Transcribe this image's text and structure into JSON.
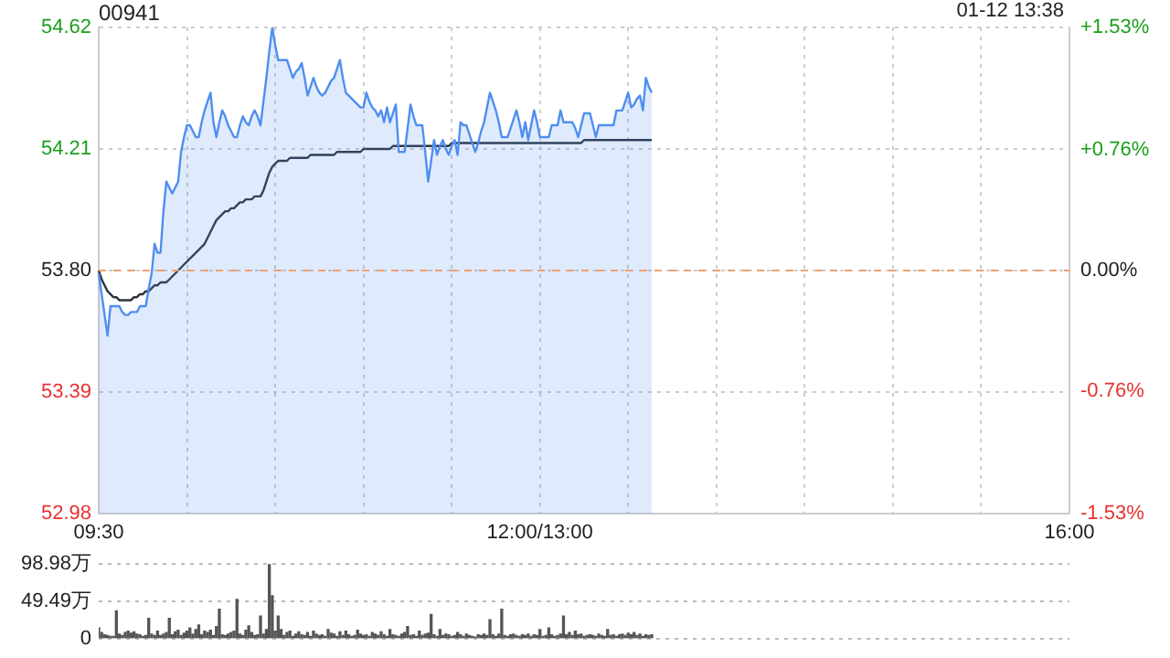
{
  "chart_data": [
    {
      "type": "line",
      "title": "00941",
      "subtitle": "01-12 13:38",
      "categories": [
        "09:30",
        null,
        null,
        null,
        null,
        null,
        null,
        null,
        null,
        null,
        null,
        null,
        null,
        null,
        null,
        null,
        null,
        null,
        null,
        null,
        null,
        null,
        null,
        null,
        null,
        null,
        null,
        null,
        null,
        null,
        null,
        null,
        null,
        null,
        null,
        null,
        null,
        null,
        null,
        null,
        null,
        null,
        null,
        null,
        null,
        null,
        null,
        null,
        null,
        null,
        null,
        null,
        null,
        null,
        null,
        null,
        null,
        null,
        null,
        null,
        null,
        null,
        null,
        null,
        null,
        null,
        null,
        null,
        null,
        null,
        null,
        null,
        null,
        null,
        null,
        null,
        null,
        null,
        null,
        null,
        null,
        null,
        null,
        null,
        null,
        null,
        null,
        null,
        null,
        null,
        null,
        null,
        null,
        null,
        null,
        null,
        null,
        null,
        null,
        null,
        null,
        null,
        null,
        null,
        null,
        null,
        null,
        null,
        null,
        null,
        null,
        null,
        null,
        null,
        null,
        null,
        null,
        null,
        null,
        null,
        null,
        null,
        null,
        null,
        null,
        null,
        null,
        null,
        null,
        null,
        null,
        null,
        null,
        null,
        null,
        null,
        null,
        null,
        null,
        null,
        null,
        null,
        null,
        null,
        null,
        null,
        null,
        null,
        null,
        null,
        "12:00/13:00",
        null,
        null,
        null,
        null,
        null,
        null,
        null,
        null,
        null,
        null,
        null,
        null,
        null,
        null,
        null,
        null,
        null,
        null,
        null,
        null,
        null,
        null,
        null,
        null,
        null,
        null,
        null,
        null,
        null,
        null,
        null,
        null,
        null,
        null,
        null,
        null,
        null,
        null,
        null,
        null,
        null,
        null,
        null,
        null,
        null,
        null,
        null,
        null,
        null,
        null,
        null,
        null,
        null,
        null,
        null,
        null,
        null,
        null,
        null,
        null,
        null,
        null,
        null,
        null,
        null,
        null,
        null,
        null,
        null,
        null,
        null,
        null,
        null,
        null,
        null,
        null,
        null,
        null,
        null,
        null,
        null,
        null,
        null,
        null,
        null,
        null,
        null,
        null,
        null,
        null,
        null,
        null,
        null,
        null,
        null,
        null,
        null,
        null,
        null,
        null,
        null,
        null,
        null,
        null,
        null,
        null,
        null,
        null,
        null,
        null,
        null,
        null,
        null,
        null,
        null,
        null,
        null,
        null,
        null,
        null,
        null,
        null,
        null,
        null,
        null,
        null,
        null,
        null,
        null,
        null,
        null,
        null,
        null,
        null,
        null,
        null,
        null,
        null,
        null,
        null,
        null,
        null,
        null,
        null,
        null,
        null,
        null,
        null,
        null,
        null,
        null,
        null,
        null,
        null,
        null,
        null,
        null,
        null,
        null,
        null,
        null,
        null,
        null,
        null,
        null,
        null,
        null,
        null,
        null,
        null,
        null,
        null,
        null,
        null,
        null,
        null,
        null,
        null,
        null,
        "16:00"
      ],
      "ylim": [
        52.98,
        54.62
      ],
      "yticks": [
        52.98,
        53.39,
        {
          "value": 53.8,
          "label": "53.80"
        },
        54.21,
        54.62
      ],
      "y2lim": [
        -1.53,
        1.53
      ],
      "y2ticks": [
        {
          "value": -1.53,
          "label": "-1.53%"
        },
        {
          "value": -0.76,
          "label": "-0.76%"
        },
        {
          "value": 0,
          "label": "0.00%"
        },
        {
          "value": 0.76,
          "label": "+0.76%"
        },
        {
          "value": 1.53,
          "label": "+1.53%"
        }
      ],
      "ref_lines": [
        {
          "axis": "y",
          "value": 53.8,
          "color": "#f0a070",
          "line_style": "dashed"
        }
      ],
      "grid": true,
      "legend": false,
      "marker": "none",
      "series": [
        {
          "type": "area",
          "color": "#4f8ef0",
          "values": [
            53.79,
            53.72,
            53.65,
            53.58,
            53.68,
            53.68,
            53.68,
            53.68,
            53.66,
            53.65,
            53.65,
            53.66,
            53.66,
            53.66,
            53.68,
            53.68,
            53.68,
            53.74,
            53.79,
            53.89,
            53.86,
            53.86,
            54.0,
            54.1,
            54.08,
            54.06,
            54.08,
            54.1,
            54.2,
            54.25,
            54.29,
            54.29,
            54.27,
            54.25,
            54.25,
            54.3,
            54.34,
            54.37,
            54.4,
            54.3,
            54.25,
            54.3,
            54.34,
            54.32,
            54.29,
            54.27,
            54.25,
            54.25,
            54.29,
            54.32,
            54.3,
            54.29,
            54.32,
            54.34,
            54.32,
            54.29,
            54.37,
            54.45,
            54.54,
            54.62,
            54.56,
            54.51,
            54.51,
            54.51,
            54.51,
            54.48,
            54.45,
            54.47,
            54.48,
            54.5,
            54.45,
            54.39,
            54.42,
            54.45,
            54.42,
            54.4,
            54.39,
            54.4,
            54.42,
            54.44,
            54.45,
            54.48,
            54.51,
            54.45,
            54.4,
            54.39,
            54.38,
            54.37,
            54.36,
            54.35,
            54.35,
            54.4,
            54.37,
            54.35,
            54.34,
            54.32,
            54.34,
            54.3,
            54.35,
            54.3,
            54.33,
            54.36,
            54.2,
            54.2,
            54.2,
            54.28,
            54.36,
            54.32,
            54.29,
            54.29,
            54.29,
            54.2,
            54.1,
            54.17,
            54.24,
            54.19,
            54.22,
            54.24,
            54.21,
            54.19,
            54.22,
            54.24,
            54.19,
            54.3,
            54.29,
            54.29,
            54.26,
            54.23,
            54.2,
            54.23,
            54.27,
            54.3,
            54.35,
            54.4,
            54.37,
            54.34,
            54.3,
            54.25,
            54.25,
            54.25,
            54.28,
            54.31,
            54.34,
            54.3,
            54.25,
            54.3,
            54.24,
            54.29,
            54.34,
            54.3,
            54.25,
            54.25,
            54.25,
            54.25,
            54.29,
            54.29,
            54.29,
            54.34,
            54.3,
            54.3,
            54.3,
            54.3,
            54.28,
            54.25,
            54.29,
            54.33,
            54.33,
            54.33,
            54.29,
            54.25,
            54.29,
            54.29,
            54.29,
            54.29,
            54.29,
            54.29,
            54.34,
            54.34,
            54.34,
            54.37,
            54.4,
            54.35,
            54.36,
            54.38,
            54.39,
            54.34,
            54.45,
            54.42,
            54.4,
            null,
            null,
            null,
            null,
            null,
            null,
            null,
            null,
            null,
            null,
            null,
            null,
            null,
            null,
            null,
            null,
            null,
            null,
            null,
            null,
            null,
            null,
            null,
            null,
            null,
            null,
            null,
            null,
            null,
            null,
            null,
            null,
            null,
            null,
            null,
            null,
            null,
            null,
            null,
            null,
            null,
            null,
            null,
            null,
            null,
            null,
            null,
            null,
            null,
            null,
            null,
            null,
            null,
            null,
            null,
            null,
            null,
            null,
            null,
            null,
            null,
            null,
            null,
            null,
            null,
            null,
            null,
            null,
            null,
            null,
            null,
            null,
            null,
            null,
            null,
            null,
            null,
            null,
            null,
            null,
            null,
            null,
            null,
            null,
            null,
            null,
            null,
            null,
            null,
            null,
            null,
            null,
            null,
            null,
            null,
            null,
            null,
            null,
            null,
            null,
            null,
            null,
            null,
            null,
            null,
            null,
            null,
            null,
            null,
            null,
            null,
            null,
            null,
            null,
            null,
            null,
            null,
            null,
            null,
            null,
            null,
            null,
            null,
            null,
            null,
            null,
            null,
            null,
            null,
            null,
            null,
            null,
            null,
            null,
            null,
            null,
            null,
            null,
            null,
            null,
            null,
            null
          ]
        },
        {
          "type": "line",
          "color": "#2c3340",
          "values": [
            53.8,
            53.77,
            53.75,
            53.73,
            53.72,
            53.71,
            53.71,
            53.7,
            53.7,
            53.7,
            53.7,
            53.7,
            53.71,
            53.71,
            53.72,
            53.72,
            53.73,
            53.73,
            53.74,
            53.75,
            53.75,
            53.76,
            53.76,
            53.76,
            53.77,
            53.78,
            53.79,
            53.8,
            53.81,
            53.82,
            53.83,
            53.84,
            53.85,
            53.86,
            53.87,
            53.88,
            53.89,
            53.91,
            53.93,
            53.95,
            53.97,
            53.98,
            53.99,
            54.0,
            54.0,
            54.01,
            54.01,
            54.02,
            54.03,
            54.03,
            54.04,
            54.04,
            54.04,
            54.05,
            54.05,
            54.05,
            54.07,
            54.1,
            54.13,
            54.15,
            54.16,
            54.17,
            54.17,
            54.17,
            54.17,
            54.18,
            54.18,
            54.18,
            54.18,
            54.18,
            54.18,
            54.18,
            54.19,
            54.19,
            54.19,
            54.19,
            54.19,
            54.19,
            54.19,
            54.19,
            54.19,
            54.2,
            54.2,
            54.2,
            54.2,
            54.2,
            54.2,
            54.2,
            54.2,
            54.2,
            54.21,
            54.21,
            54.21,
            54.21,
            54.21,
            54.21,
            54.21,
            54.21,
            54.21,
            54.21,
            54.22,
            54.22,
            54.22,
            54.22,
            54.22,
            54.22,
            54.22,
            54.22,
            54.22,
            54.22,
            54.22,
            54.22,
            54.22,
            54.22,
            54.22,
            54.22,
            54.22,
            54.22,
            54.22,
            54.22,
            54.23,
            54.23,
            54.23,
            54.23,
            54.23,
            54.23,
            54.23,
            54.23,
            54.23,
            54.23,
            54.23,
            54.23,
            54.23,
            54.23,
            54.23,
            54.23,
            54.23,
            54.23,
            54.23,
            54.23,
            54.23,
            54.23,
            54.23,
            54.23,
            54.23,
            54.23,
            54.23,
            54.23,
            54.23,
            54.23,
            54.23,
            54.23,
            54.23,
            54.23,
            54.23,
            54.23,
            54.23,
            54.23,
            54.23,
            54.23,
            54.23,
            54.23,
            54.23,
            54.23,
            54.23,
            54.24,
            54.24,
            54.24,
            54.24,
            54.24,
            54.24,
            54.24,
            54.24,
            54.24,
            54.24,
            54.24,
            54.24,
            54.24,
            54.24,
            54.24,
            54.24,
            54.24,
            54.24,
            54.24,
            54.24,
            54.24,
            54.24,
            54.24,
            54.24,
            null,
            null,
            null,
            null,
            null,
            null,
            null,
            null,
            null,
            null,
            null,
            null,
            null,
            null,
            null,
            null,
            null,
            null,
            null,
            null,
            null,
            null,
            null,
            null,
            null,
            null,
            null,
            null,
            null,
            null,
            null,
            null,
            null,
            null,
            null,
            null,
            null,
            null,
            null,
            null,
            null,
            null,
            null,
            null,
            null,
            null,
            null,
            null,
            null,
            null,
            null,
            null,
            null,
            null,
            null,
            null,
            null,
            null,
            null,
            null,
            null,
            null,
            null,
            null,
            null,
            null,
            null,
            null,
            null,
            null,
            null,
            null,
            null,
            null,
            null,
            null,
            null,
            null,
            null,
            null,
            null,
            null,
            null,
            null,
            null,
            null,
            null,
            null,
            null,
            null,
            null,
            null,
            null,
            null,
            null,
            null,
            null,
            null,
            null,
            null,
            null,
            null,
            null,
            null,
            null,
            null,
            null,
            null,
            null,
            null,
            null,
            null,
            null,
            null,
            null,
            null,
            null,
            null,
            null,
            null,
            null,
            null,
            null,
            null,
            null,
            null,
            null,
            null,
            null,
            null,
            null,
            null,
            null,
            null,
            null,
            null,
            null,
            null,
            null,
            null,
            null,
            null
          ]
        }
      ]
    },
    {
      "type": "bar",
      "color": "#555555",
      "tick_labels": "y",
      "grid": "y",
      "legend": false,
      "categories": [
        null,
        null,
        null,
        null,
        null,
        null,
        null,
        null,
        null,
        null,
        null,
        null,
        null,
        null,
        null,
        null,
        null,
        null,
        null,
        null,
        null,
        null,
        null,
        null,
        null,
        null,
        null,
        null,
        null,
        null,
        null,
        null,
        null,
        null,
        null,
        null,
        null,
        null,
        null,
        null,
        null,
        null,
        null,
        null,
        null,
        null,
        null,
        null,
        null,
        null,
        null,
        null,
        null,
        null,
        null,
        null,
        null,
        null,
        null,
        null,
        null,
        null,
        null,
        null,
        null,
        null,
        null,
        null,
        null,
        null,
        null,
        null,
        null,
        null,
        null,
        null,
        null,
        null,
        null,
        null,
        null,
        null,
        null,
        null,
        null,
        null,
        null,
        null,
        null,
        null,
        null,
        null,
        null,
        null,
        null,
        null,
        null,
        null,
        null,
        null,
        null,
        null,
        null,
        null,
        null,
        null,
        null,
        null,
        null,
        null,
        null,
        null,
        null,
        null,
        null,
        null,
        null,
        null,
        null,
        null,
        null,
        null,
        null,
        null,
        null,
        null,
        null,
        null,
        null,
        null,
        null,
        null,
        null,
        null,
        null,
        null,
        null,
        null,
        null,
        null,
        null,
        null,
        null,
        null,
        null,
        null,
        null,
        null,
        null,
        null,
        null,
        null,
        null,
        null,
        null,
        null,
        null,
        null,
        null,
        null,
        null,
        null,
        null,
        null,
        null,
        null,
        null,
        null,
        null,
        null,
        null,
        null,
        null,
        null,
        null,
        null,
        null,
        null,
        null,
        null,
        null,
        null,
        null,
        null,
        null,
        null,
        null,
        null,
        null,
        null,
        null,
        null,
        null,
        null,
        null,
        null,
        null,
        null,
        null,
        null,
        null,
        null,
        null,
        null,
        null,
        null,
        null,
        null,
        null,
        null,
        null,
        null,
        null,
        null,
        null,
        null,
        null,
        null,
        null,
        null,
        null,
        null,
        null,
        null,
        null,
        null,
        null,
        null,
        null,
        null,
        null,
        null,
        null,
        null,
        null,
        null,
        null,
        null,
        null,
        null,
        null,
        null,
        null,
        null,
        null,
        null,
        null,
        null,
        null,
        null,
        null,
        null,
        null,
        null,
        null,
        null,
        null,
        null,
        null,
        null,
        null,
        null,
        null,
        null,
        null,
        null,
        null,
        null,
        null,
        null,
        null,
        null,
        null,
        null,
        null,
        null,
        null,
        null,
        null,
        null,
        null,
        null,
        null,
        null,
        null,
        null,
        null,
        null,
        null,
        null,
        null,
        null,
        null,
        null,
        null,
        null,
        null,
        null,
        null,
        null,
        null,
        null,
        null,
        null,
        null,
        null,
        null,
        null,
        null,
        null,
        null,
        null,
        null,
        null,
        null,
        null,
        null,
        null,
        null,
        null,
        null,
        null,
        null,
        null,
        null,
        null,
        null,
        null,
        null,
        null,
        null
      ],
      "ylim": [
        0,
        98.98
      ],
      "yticks": [
        0,
        {
          "value": 49.49,
          "label": "49.49万"
        },
        {
          "value": 98.98,
          "label": "98.98万"
        }
      ],
      "values": [
        14,
        8,
        5,
        4,
        3,
        3,
        37,
        6,
        4,
        8,
        10,
        7,
        9,
        6,
        5,
        3,
        4,
        27,
        6,
        4,
        10,
        4,
        6,
        8,
        27,
        5,
        9,
        11,
        4,
        7,
        10,
        14,
        6,
        12,
        18,
        5,
        10,
        8,
        11,
        4,
        16,
        39,
        5,
        4,
        6,
        8,
        10,
        52,
        6,
        4,
        11,
        17,
        8,
        4,
        5,
        30,
        6,
        12,
        98.98,
        57,
        10,
        30,
        12,
        4,
        8,
        10,
        3,
        6,
        9,
        5,
        4,
        8,
        3,
        10,
        6,
        4,
        5,
        3,
        12,
        7,
        6,
        3,
        9,
        4,
        10,
        5,
        3,
        4,
        11,
        6,
        4,
        5,
        3,
        8,
        6,
        4,
        9,
        5,
        3,
        12,
        5,
        4,
        3,
        6,
        8,
        16,
        4,
        5,
        3,
        10,
        4,
        6,
        7,
        32,
        5,
        3,
        12,
        4,
        6,
        5,
        3,
        4,
        8,
        5,
        3,
        6,
        4,
        3,
        2,
        5,
        4,
        6,
        4,
        25,
        5,
        3,
        6,
        39,
        4,
        3,
        5,
        6,
        4,
        3,
        5,
        4,
        6,
        3,
        5,
        4,
        12,
        3,
        4,
        14,
        5,
        3,
        4,
        6,
        30,
        5,
        8,
        4,
        10,
        5,
        6,
        3,
        4,
        5,
        4,
        3,
        6,
        4,
        3,
        12,
        4,
        5,
        3,
        5,
        6,
        4,
        7,
        5,
        8,
        4,
        6,
        3,
        5,
        4,
        5,
        null,
        null,
        null,
        null,
        null,
        null,
        null,
        null,
        null,
        null,
        null,
        null,
        null,
        null,
        null,
        null,
        null,
        null,
        null,
        null,
        null,
        null,
        null,
        null,
        null,
        null,
        null,
        null,
        null,
        null,
        null,
        null,
        null,
        null,
        null,
        null,
        null,
        null,
        null,
        null,
        null,
        null,
        null,
        null,
        null,
        null,
        null,
        null,
        null,
        null,
        null,
        null,
        null,
        null,
        null,
        null,
        null,
        null,
        null,
        null,
        null,
        null,
        null,
        null,
        null,
        null,
        null,
        null,
        null,
        null,
        null,
        null,
        null,
        null,
        null,
        null,
        null,
        null,
        null,
        null,
        null,
        null,
        null,
        null,
        null,
        null,
        null,
        null,
        null,
        null,
        null,
        null,
        null,
        null,
        null,
        null,
        null,
        null,
        null,
        null,
        null,
        null,
        null,
        null,
        null,
        null,
        null,
        null,
        null,
        null,
        null,
        null,
        null,
        null,
        null,
        null,
        null,
        null,
        null,
        null,
        null,
        null,
        null,
        null,
        null,
        null,
        null,
        null,
        null,
        null,
        null,
        null,
        null,
        null,
        null,
        null,
        null,
        null,
        null,
        null,
        null,
        null
      ]
    }
  ]
}
